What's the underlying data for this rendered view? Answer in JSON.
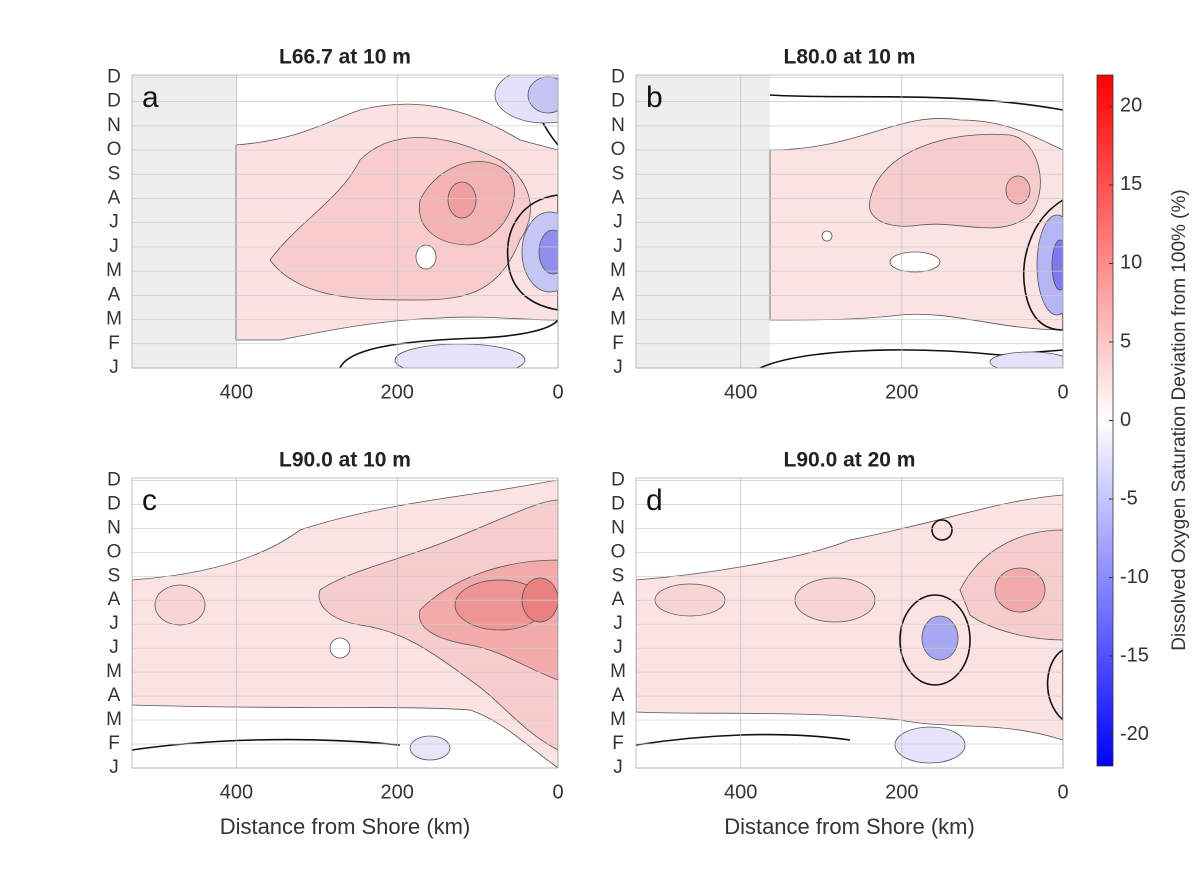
{
  "chart_data": [
    {
      "type": "contour",
      "title": "L66.7 at 10 m",
      "panel_label": "a",
      "xlim": [
        530,
        0
      ],
      "xticks": [
        400,
        200,
        0
      ],
      "categories": [
        "J",
        "F",
        "M",
        "A",
        "M",
        "J",
        "J",
        "A",
        "S",
        "O",
        "N",
        "D",
        "D"
      ],
      "grid": true
    },
    {
      "type": "contour",
      "title": "L80.0 at 10 m",
      "panel_label": "b",
      "xlim": [
        530,
        0
      ],
      "xticks": [
        400,
        200,
        0
      ],
      "categories": [
        "J",
        "F",
        "M",
        "A",
        "M",
        "J",
        "J",
        "A",
        "S",
        "O",
        "N",
        "D",
        "D"
      ],
      "grid": true
    },
    {
      "type": "contour",
      "title": "L90.0 at 10 m",
      "panel_label": "c",
      "xlim": [
        530,
        0
      ],
      "xticks": [
        400,
        200,
        0
      ],
      "categories": [
        "J",
        "F",
        "M",
        "A",
        "M",
        "J",
        "J",
        "A",
        "S",
        "O",
        "N",
        "D",
        "D"
      ],
      "grid": true,
      "xlabel": "Distance from Shore (km)"
    },
    {
      "type": "contour",
      "title": "L90.0 at 20 m",
      "panel_label": "d",
      "xlim": [
        530,
        0
      ],
      "xticks": [
        400,
        200,
        0
      ],
      "categories": [
        "J",
        "F",
        "M",
        "A",
        "M",
        "J",
        "J",
        "A",
        "S",
        "O",
        "N",
        "D",
        "D"
      ],
      "grid": true,
      "xlabel": "Distance from Shore (km)"
    }
  ],
  "colorbar": {
    "label": "Dissolved Oxygen Saturation Deviation from 100% (%)",
    "lim": [
      -22,
      22
    ],
    "ticks": [
      -20,
      -15,
      -10,
      -5,
      0,
      5,
      10,
      15,
      20
    ],
    "colors": [
      "#0000ff",
      "#ffffff",
      "#ff0000"
    ]
  }
}
